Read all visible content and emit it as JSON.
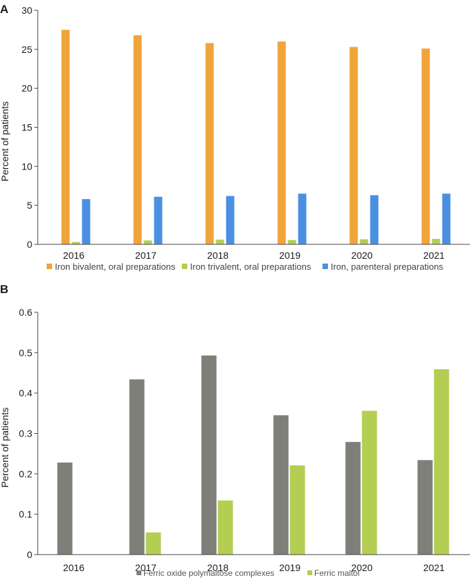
{
  "chart_data": [
    {
      "type": "bar",
      "panel": "A",
      "categories": [
        "2016",
        "2017",
        "2018",
        "2019",
        "2020",
        "2021"
      ],
      "series": [
        {
          "name": "Iron bivalent, oral preparations",
          "color": "#F0A43A",
          "values": [
            27.5,
            26.8,
            25.8,
            26.0,
            25.3,
            25.1
          ]
        },
        {
          "name": "Iron trivalent, oral preparations",
          "color": "#B3CE52",
          "values": [
            0.3,
            0.5,
            0.6,
            0.55,
            0.65,
            0.7
          ]
        },
        {
          "name": "Iron, parenteral preparations",
          "color": "#4A90E2",
          "values": [
            5.8,
            6.1,
            6.2,
            6.5,
            6.3,
            6.5
          ]
        }
      ],
      "title": "",
      "xlabel": "",
      "ylabel": "Percent of patients",
      "ylim": [
        0,
        30
      ],
      "yticks": [
        "0",
        "5",
        "10",
        "15",
        "20",
        "25",
        "30"
      ],
      "grid": false,
      "legend": "bottom"
    },
    {
      "type": "bar",
      "panel": "B",
      "categories": [
        "2016",
        "2017",
        "2018",
        "2019",
        "2020",
        "2021"
      ],
      "series": [
        {
          "name": "Ferric oxide polymaltose complexes",
          "color": "#7F7F7A",
          "values": [
            0.228,
            0.434,
            0.493,
            0.345,
            0.279,
            0.234
          ]
        },
        {
          "name": "Ferric maltol",
          "color": "#B3CE52",
          "values": [
            0,
            0.055,
            0.134,
            0.221,
            0.356,
            0.459
          ]
        }
      ],
      "title": "",
      "xlabel": "",
      "ylabel": "Percent of patients",
      "ylim": [
        0,
        0.6
      ],
      "yticks": [
        "0",
        "0.1",
        "0.2",
        "0.3",
        "0.4",
        "0.5",
        "0.6"
      ],
      "grid": false,
      "legend": "bottom"
    }
  ]
}
